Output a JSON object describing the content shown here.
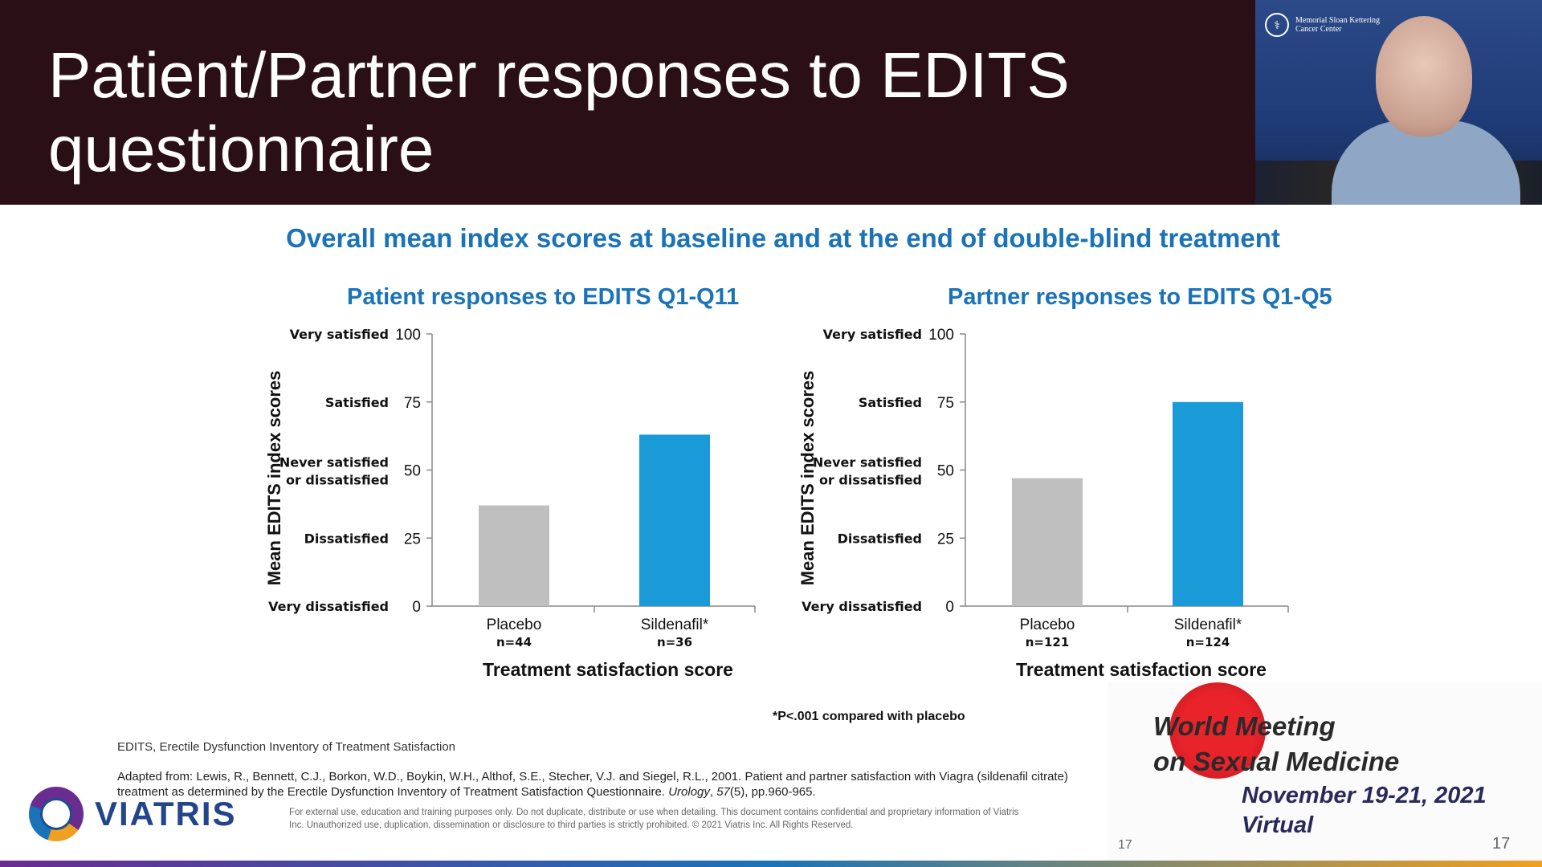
{
  "slide": {
    "title": "Patient/Partner responses to EDITS questionnaire",
    "subtitle": "Overall mean index scores at baseline and at the end of double-blind treatment",
    "footnote_p": "*P<.001 compared with placebo",
    "abbrev": "EDITS, Erectile Dysfunction Inventory of Treatment Satisfaction",
    "reference_pre": "Adapted from: Lewis, R., Bennett, C.J., Borkon, W.D., Boykin, W.H., Althof, S.E., Stecher, V.J. and Siegel, R.L., 2001. Patient and partner satisfaction with Viagra (sildenafil citrate) treatment as determined by the Erectile Dysfunction Inventory of Treatment Satisfaction Questionnaire. ",
    "reference_journal": "Urology",
    "reference_mid": ", ",
    "reference_vol": "57",
    "reference_post": "(5), pp.960-965.",
    "disclaimer": "For external use, education and training purposes only. Do not duplicate, distribute or use when detailing. This document contains confidential and proprietary information of Viatris Inc. Unauthorized use, duplication, dissemination or disclosure to third parties is strictly prohibited. © 2021 Viatris Inc. All Rights Reserved.",
    "page_number_inner": "17",
    "page_number_outer": "17",
    "logo_text": "VIATRIS"
  },
  "webcam": {
    "institution": "Memorial Sloan Kettering Cancer Center"
  },
  "event": {
    "line1": "World Meeting",
    "line2": "on Sexual Medicine",
    "dates": "November 19-21, 2021",
    "mode": "Virtual"
  },
  "chart_data": [
    {
      "type": "bar",
      "title": "Patient responses to EDITS Q1-Q11",
      "categories": [
        "Placebo",
        "Sildenafil*"
      ],
      "category_n": [
        "n=44",
        "n=36"
      ],
      "values": [
        37,
        63
      ],
      "colors": [
        "#bfbfbf",
        "#1a9ad6"
      ],
      "ylabel": "Mean EDITS index scores",
      "xlabel": "Treatment satisfaction score",
      "ylim": [
        0,
        100
      ],
      "yticks": [
        "0",
        "25",
        "50",
        "75",
        "100"
      ],
      "ytick_labels": [
        "Very dissatisfied",
        "Dissatisfied",
        "Never satisfied or dissatisfied",
        "Satisfied",
        "Very satisfied"
      ],
      "grid": false
    },
    {
      "type": "bar",
      "title": "Partner responses to EDITS Q1-Q5",
      "categories": [
        "Placebo",
        "Sildenafil*"
      ],
      "category_n": [
        "n=121",
        "n=124"
      ],
      "values": [
        47,
        75
      ],
      "colors": [
        "#bfbfbf",
        "#1a9ad6"
      ],
      "ylabel": "Mean EDITS index scores",
      "xlabel": "Treatment satisfaction score",
      "ylim": [
        0,
        100
      ],
      "yticks": [
        "0",
        "25",
        "50",
        "75",
        "100"
      ],
      "ytick_labels": [
        "Very dissatisfied",
        "Dissatisfied",
        "Never satisfied or dissatisfied",
        "Satisfied",
        "Very satisfied"
      ],
      "grid": false
    }
  ]
}
